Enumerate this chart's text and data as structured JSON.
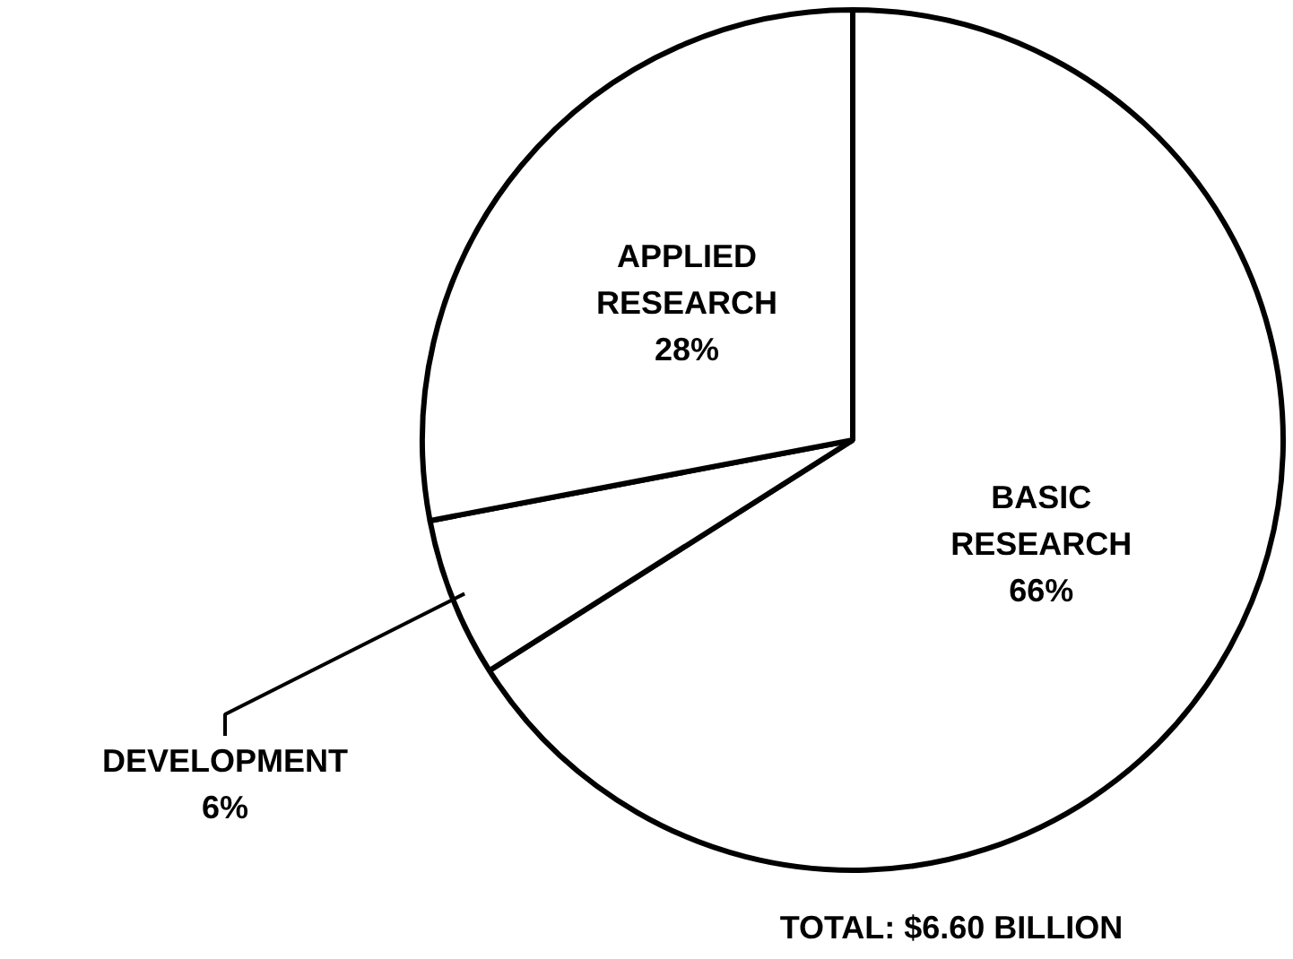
{
  "chart_data": {
    "type": "pie",
    "categories": [
      "BASIC RESEARCH",
      "DEVELOPMENT",
      "APPLIED RESEARCH"
    ],
    "values": [
      66,
      6,
      28
    ],
    "value_labels": [
      "66%",
      "6%",
      "28%"
    ],
    "colors": [
      "#ffffff",
      "#ffffff",
      "#ffffff"
    ],
    "annotations": [
      "TOTAL: $6.60 BILLION"
    ]
  }
}
